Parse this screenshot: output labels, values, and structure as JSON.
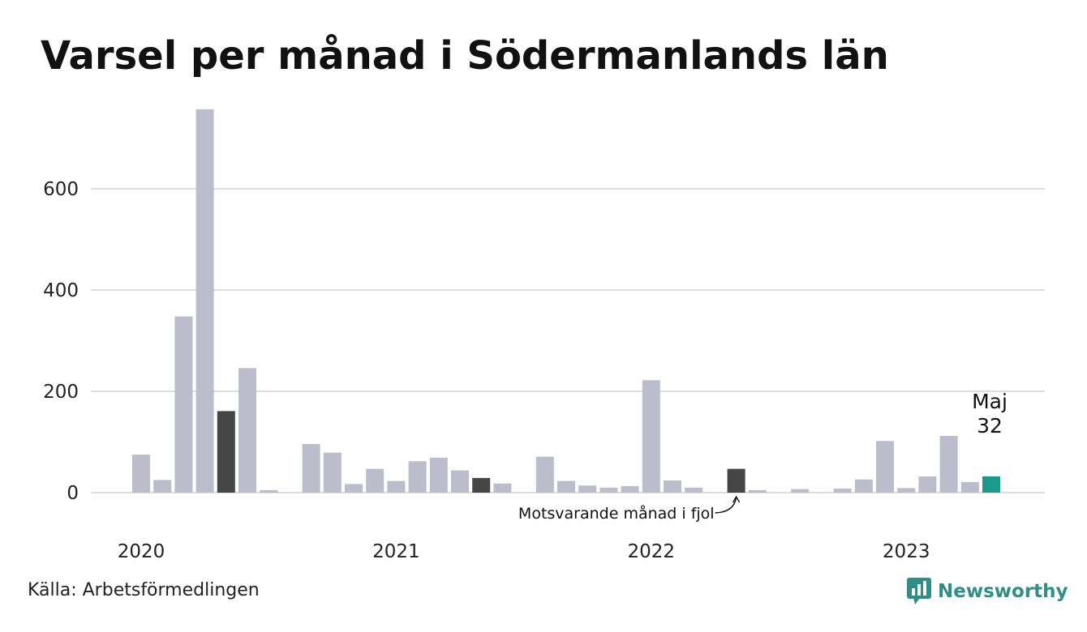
{
  "header": {
    "title": "Varsel per månad i Södermanlands län"
  },
  "footer": {
    "source": "Källa: Arbetsförmedlingen",
    "brand": "Newsworthy"
  },
  "colors": {
    "bar": "#bdbcca",
    "highlight": "#464646",
    "current": "#1a9a8d",
    "grid": "#dddddd",
    "brand": "#2f8f86"
  },
  "brand_icon": "newsworthy-logo-icon",
  "chart_data": {
    "type": "bar",
    "ylim": [
      0,
      760
    ],
    "yticks": [
      0,
      200,
      400,
      600
    ],
    "grid": true,
    "year_labels": [
      "2020",
      "2021",
      "2022",
      "2023"
    ],
    "values": [
      75,
      25,
      348,
      757,
      161,
      246,
      5,
      0,
      96,
      79,
      17,
      47,
      23,
      62,
      69,
      44,
      29,
      18,
      0,
      71,
      23,
      14,
      10,
      13,
      222,
      24,
      10,
      0,
      47,
      5,
      0,
      7,
      0,
      8,
      26,
      102,
      9,
      32,
      112,
      21,
      32
    ],
    "series_months": [
      "Jan 2020 – Maj 2023"
    ],
    "highlight_indices": [
      4,
      16,
      28
    ],
    "current_index": 40,
    "annotation_current": {
      "month": "Maj",
      "value": "32"
    },
    "annotation_prev": "Motsvarande månad i fjol"
  }
}
